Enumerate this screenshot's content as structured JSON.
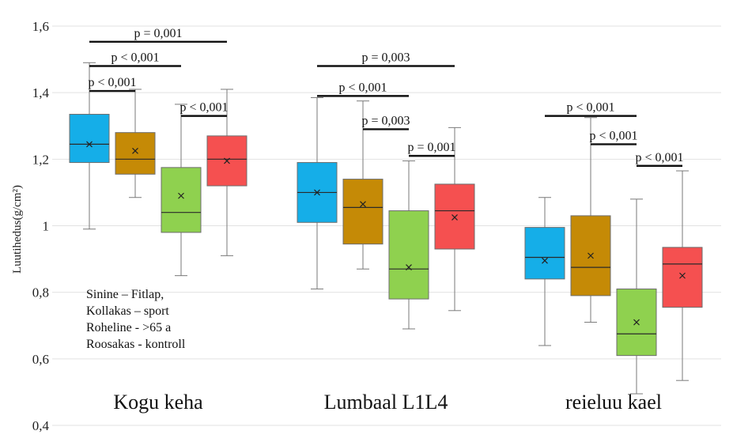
{
  "chart_data": {
    "type": "boxplot",
    "ylabel": "Luutihedus(g/cm²)",
    "ylim": [
      0.4,
      1.6
    ],
    "yticks": [
      "0,4",
      "0,6",
      "0,8",
      "1",
      "1,2",
      "1,4",
      "1,6"
    ],
    "ytick_values": [
      0.4,
      0.6,
      0.8,
      1.0,
      1.2,
      1.4,
      1.6
    ],
    "grid": true,
    "groups": [
      {
        "label": "Kogu keha",
        "boxes": [
          {
            "color": "#15aee8",
            "min": 0.99,
            "q1": 1.19,
            "median": 1.245,
            "q3": 1.335,
            "max": 1.49,
            "mean": 1.245
          },
          {
            "color": "#c58a06",
            "min": 1.085,
            "q1": 1.155,
            "median": 1.2,
            "q3": 1.28,
            "max": 1.41,
            "mean": 1.225
          },
          {
            "color": "#8fd14f",
            "min": 0.85,
            "q1": 0.98,
            "median": 1.04,
            "q3": 1.175,
            "max": 1.365,
            "mean": 1.09
          },
          {
            "color": "#f55050",
            "min": 0.91,
            "q1": 1.12,
            "median": 1.2,
            "q3": 1.27,
            "max": 1.41,
            "mean": 1.195
          }
        ],
        "pvalues": [
          {
            "text": "p = 0,001",
            "from": 0,
            "to": 3,
            "y": 1.553
          },
          {
            "text": "p < 0,001",
            "from": 0,
            "to": 2,
            "y": 1.48
          },
          {
            "text": "p < 0,001",
            "from": 0,
            "to": 1,
            "y": 1.405
          },
          {
            "text": "p < 0,001",
            "from": 2,
            "to": 3,
            "y": 1.33
          }
        ]
      },
      {
        "label": "Lumbaal L1L4",
        "boxes": [
          {
            "color": "#15aee8",
            "min": 0.81,
            "q1": 1.01,
            "median": 1.1,
            "q3": 1.19,
            "max": 1.385,
            "mean": 1.1
          },
          {
            "color": "#c58a06",
            "min": 0.87,
            "q1": 0.945,
            "median": 1.055,
            "q3": 1.14,
            "max": 1.375,
            "mean": 1.065
          },
          {
            "color": "#8fd14f",
            "min": 0.69,
            "q1": 0.78,
            "median": 0.87,
            "q3": 1.045,
            "max": 1.195,
            "mean": 0.875
          },
          {
            "color": "#f55050",
            "min": 0.745,
            "q1": 0.93,
            "median": 1.045,
            "q3": 1.125,
            "max": 1.295,
            "mean": 1.025
          }
        ],
        "pvalues": [
          {
            "text": "p = 0,003",
            "from": 0,
            "to": 3,
            "y": 1.48
          },
          {
            "text": "p < 0,001",
            "from": 0,
            "to": 2,
            "y": 1.39
          },
          {
            "text": "p = 0,003",
            "from": 1,
            "to": 2,
            "y": 1.29
          },
          {
            "text": "p = 0,001",
            "from": 2,
            "to": 3,
            "y": 1.21
          }
        ]
      },
      {
        "label": "reieluu kael",
        "boxes": [
          {
            "color": "#15aee8",
            "min": 0.64,
            "q1": 0.84,
            "median": 0.905,
            "q3": 0.995,
            "max": 1.085,
            "mean": 0.895
          },
          {
            "color": "#c58a06",
            "min": 0.71,
            "q1": 0.79,
            "median": 0.875,
            "q3": 1.03,
            "max": 1.325,
            "mean": 0.91
          },
          {
            "color": "#8fd14f",
            "min": 0.495,
            "q1": 0.61,
            "median": 0.675,
            "q3": 0.81,
            "max": 1.08,
            "mean": 0.71
          },
          {
            "color": "#f55050",
            "min": 0.535,
            "q1": 0.755,
            "median": 0.885,
            "q3": 0.935,
            "max": 1.165,
            "mean": 0.85
          }
        ],
        "pvalues": [
          {
            "text": "p < 0,001",
            "from": 0,
            "to": 2,
            "y": 1.33
          },
          {
            "text": "p < 0,001",
            "from": 1,
            "to": 2,
            "y": 1.245
          },
          {
            "text": "p < 0,001",
            "from": 2,
            "to": 3,
            "y": 1.18
          }
        ]
      }
    ],
    "legend_text": [
      "Sinine – Fitlap,",
      "Kollakas – sport",
      "Roheline - >65 a",
      "Roosakas - kontroll"
    ]
  }
}
